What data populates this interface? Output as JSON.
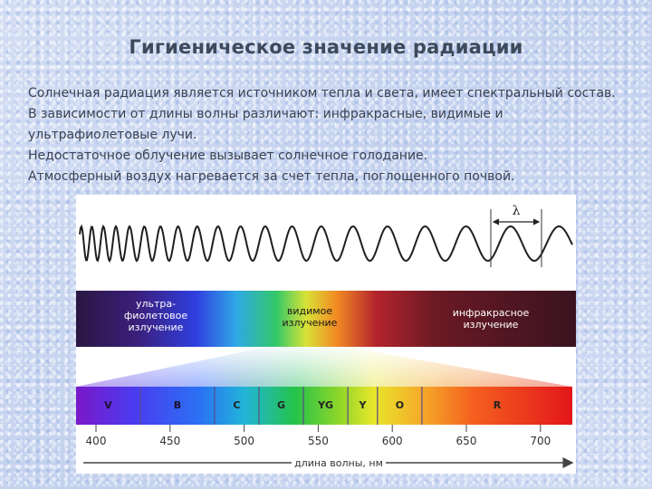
{
  "slide": {
    "title": "Гигиеническое значение радиации",
    "paragraphs": [
      "Солнечная радиация является источником тепла и света, имеет спектральный состав.",
      "В зависимости от длины волны различают: инфракрасные, видимые и ультрафиолетовые лучи.",
      "Недостаточное облучение вызывает солнечное голодание.",
      "Атмосферный воздух нагревается за счет тепла, поглощенного почвой."
    ]
  },
  "figure": {
    "wavelength_symbol": "λ",
    "regions": {
      "uv_line1": "ультра-",
      "uv_line2": "фиолетовое",
      "uv_line3": "излучение",
      "visible_line1": "видимое",
      "visible_line2": "излучение",
      "ir_line1": "инфракрасное",
      "ir_line2": "излучение"
    },
    "color_bands": [
      {
        "label": "V",
        "start": 400,
        "end": 430
      },
      {
        "label": "B",
        "start": 430,
        "end": 480
      },
      {
        "label": "C",
        "start": 480,
        "end": 510
      },
      {
        "label": "G",
        "start": 510,
        "end": 540
      },
      {
        "label": "YG",
        "start": 540,
        "end": 570
      },
      {
        "label": "Y",
        "start": 570,
        "end": 590
      },
      {
        "label": "O",
        "start": 590,
        "end": 620
      },
      {
        "label": "R",
        "start": 620,
        "end": 720
      }
    ],
    "axis_ticks": [
      "400",
      "450",
      "500",
      "550",
      "600",
      "650",
      "700"
    ],
    "axis_label": "длина волны, нм",
    "colors": {
      "title": "#3d4a5c",
      "text": "#3a4254",
      "band_label": "#222222",
      "region_label": "#ffffff"
    }
  }
}
